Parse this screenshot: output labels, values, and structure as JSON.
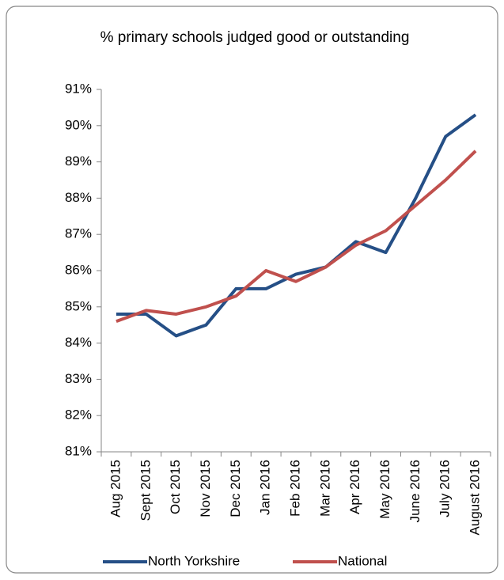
{
  "chart_data": {
    "type": "line",
    "title": "% primary schools judged good or outstanding",
    "categories": [
      "Aug 2015",
      "Sept 2015",
      "Oct 2015",
      "Nov 2015",
      "Dec 2015",
      "Jan 2016",
      "Feb 2016",
      "Mar 2016",
      "Apr 2016",
      "May 2016",
      "June 2016",
      "July 2016",
      "August 2016"
    ],
    "series": [
      {
        "name": "North Yorkshire",
        "color": "#254f86",
        "values": [
          84.8,
          84.8,
          84.2,
          84.5,
          85.5,
          85.5,
          85.9,
          86.1,
          86.8,
          86.5,
          88.0,
          89.7,
          90.3
        ]
      },
      {
        "name": "National",
        "color": "#c0504d",
        "values": [
          84.6,
          84.9,
          84.8,
          85.0,
          85.3,
          86.0,
          85.7,
          86.1,
          86.7,
          87.1,
          87.8,
          88.5,
          89.3
        ]
      }
    ],
    "ylim": [
      81,
      91
    ],
    "yticks": [
      {
        "value": 81,
        "label": "81%"
      },
      {
        "value": 82,
        "label": "82%"
      },
      {
        "value": 83,
        "label": "83%"
      },
      {
        "value": 84,
        "label": "84%"
      },
      {
        "value": 85,
        "label": "85%"
      },
      {
        "value": 86,
        "label": "86%"
      },
      {
        "value": 87,
        "label": "87%"
      },
      {
        "value": 88,
        "label": "88%"
      },
      {
        "value": 89,
        "label": "89%"
      },
      {
        "value": 90,
        "label": "90%"
      },
      {
        "value": 91,
        "label": "91%"
      }
    ],
    "grid": false,
    "legend": "bottom"
  }
}
